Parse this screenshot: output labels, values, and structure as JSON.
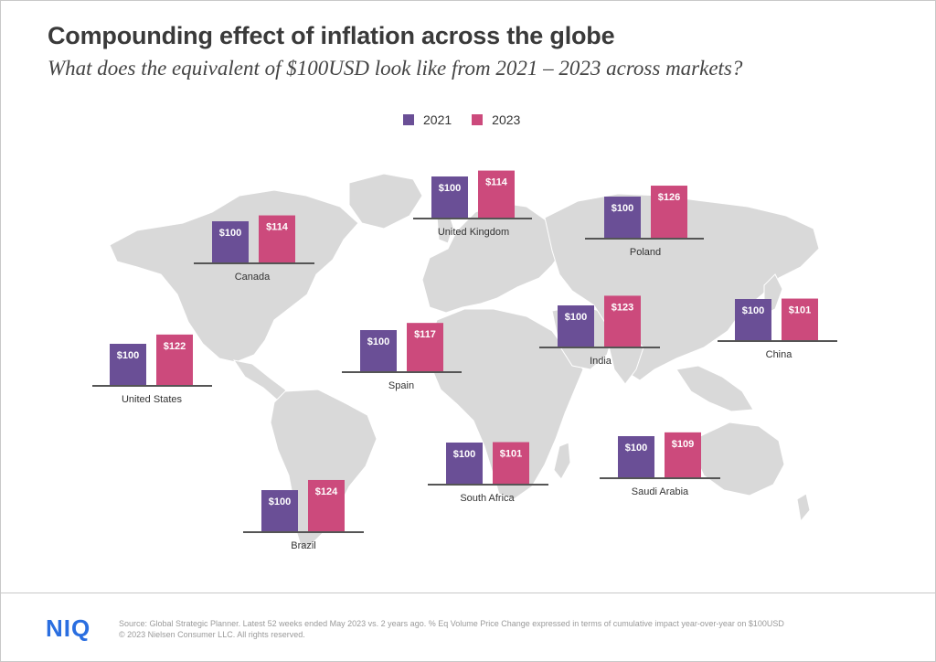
{
  "header": {
    "title": "Compounding effect of inflation across the globe",
    "subtitle": "What does the equivalent of $100USD look like from 2021 – 2023 across markets?"
  },
  "legend": [
    {
      "label": "2021",
      "color": "#6a4f96"
    },
    {
      "label": "2023",
      "color": "#cc4a7c"
    }
  ],
  "chart_data": {
    "type": "bar",
    "series": [
      {
        "name": "2021"
      },
      {
        "name": "2023"
      }
    ],
    "markets": [
      {
        "name": "Canada",
        "values": [
          100,
          114
        ],
        "labels": [
          "$100",
          "$114"
        ]
      },
      {
        "name": "United Kingdom",
        "values": [
          100,
          114
        ],
        "labels": [
          "$100",
          "$114"
        ]
      },
      {
        "name": "Poland",
        "values": [
          100,
          126
        ],
        "labels": [
          "$100",
          "$126"
        ]
      },
      {
        "name": "United States",
        "values": [
          100,
          122
        ],
        "labels": [
          "$100",
          "$122"
        ]
      },
      {
        "name": "Spain",
        "values": [
          100,
          117
        ],
        "labels": [
          "$100",
          "$117"
        ]
      },
      {
        "name": "India",
        "values": [
          100,
          123
        ],
        "labels": [
          "$100",
          "$123"
        ]
      },
      {
        "name": "China",
        "values": [
          100,
          101
        ],
        "labels": [
          "$100",
          "$101"
        ]
      },
      {
        "name": "South Africa",
        "values": [
          100,
          101
        ],
        "labels": [
          "$100",
          "$101"
        ]
      },
      {
        "name": "Saudi Arabia",
        "values": [
          100,
          109
        ],
        "labels": [
          "$100",
          "$109"
        ]
      },
      {
        "name": "Brazil",
        "values": [
          100,
          124
        ],
        "labels": [
          "$100",
          "$124"
        ]
      }
    ]
  },
  "colors": {
    "map": "#d9d9d9",
    "bar_2021": "#6a4f96",
    "bar_2023": "#cc4a7c",
    "baseline": "#555555"
  },
  "footer": {
    "logo": "NIQ",
    "source": "Source: Global Strategic Planner. Latest 52 weeks ended May 2023 vs. 2 years ago. % Eq Volume Price Change  expressed in terms of cumulative  impact year-over-year  on $100USD",
    "copyright": "© 2023 Nielsen Consumer LLC.  All rights reserved."
  }
}
